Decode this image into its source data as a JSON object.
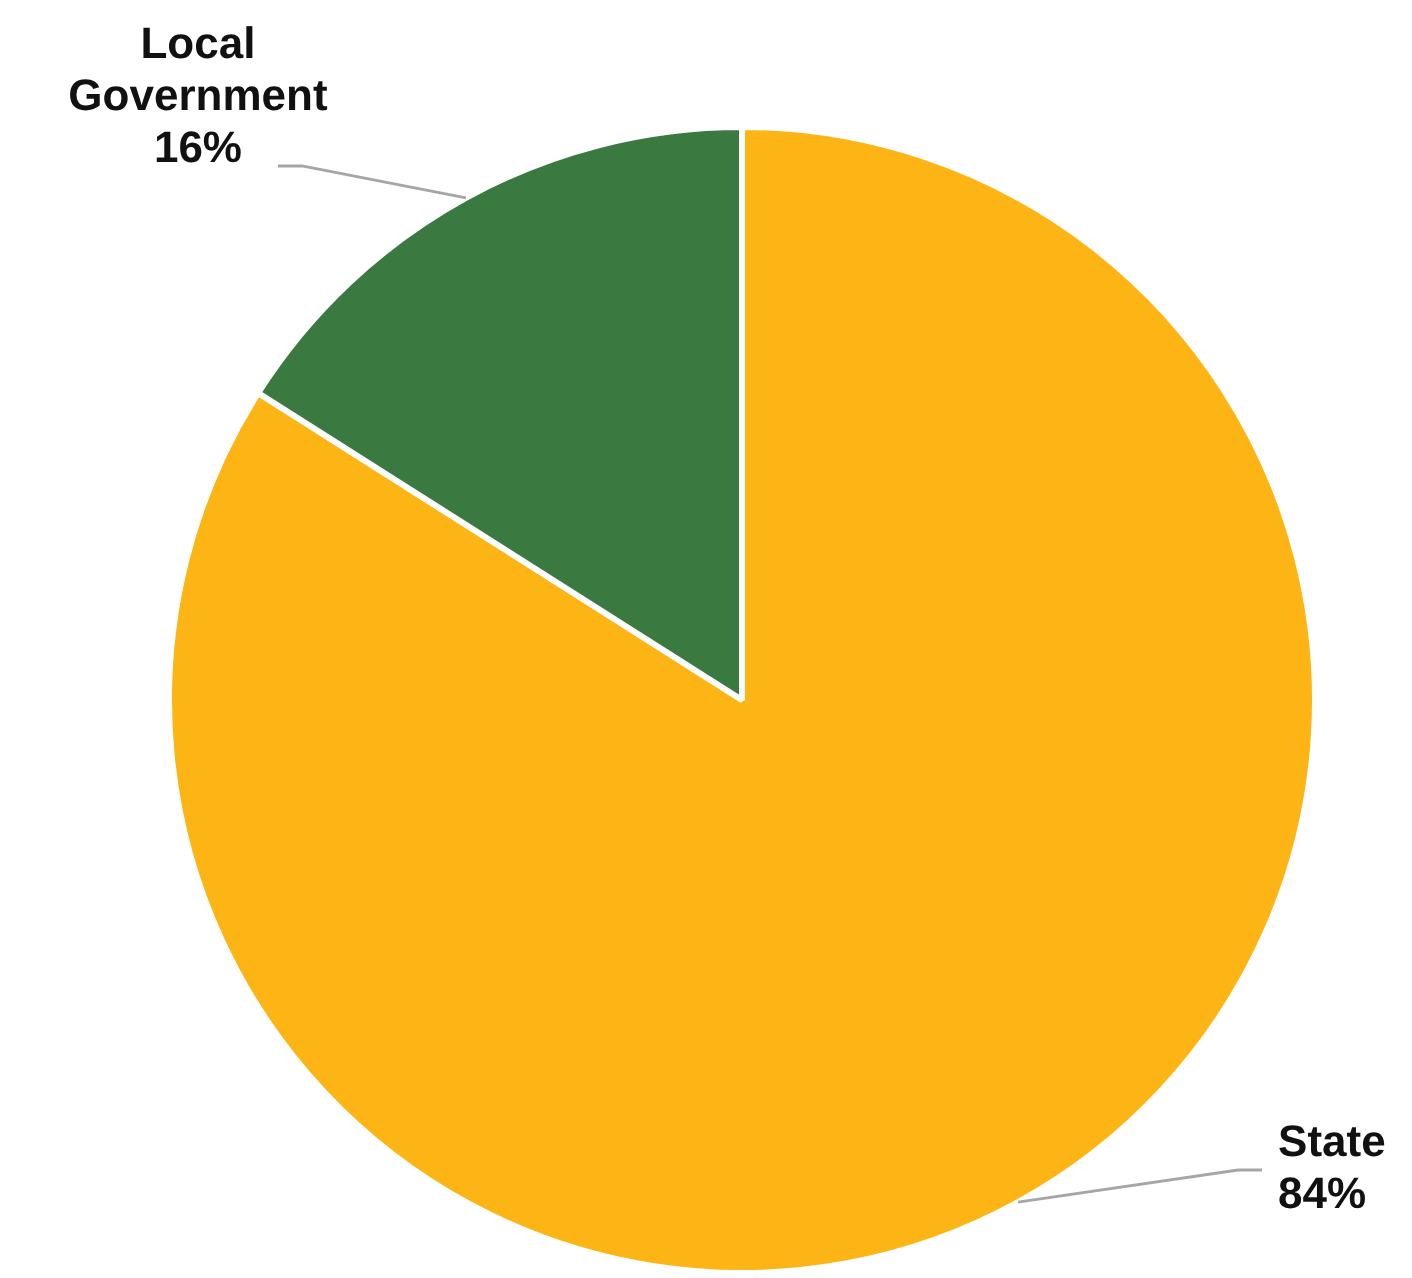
{
  "chart_data": {
    "type": "pie",
    "categories": [
      "State",
      "Local Government"
    ],
    "values": [
      84,
      16
    ],
    "colors": [
      "#fdb515",
      "#3a7a41"
    ],
    "value_labels": [
      "84%",
      "16%"
    ],
    "legend": false
  }
}
